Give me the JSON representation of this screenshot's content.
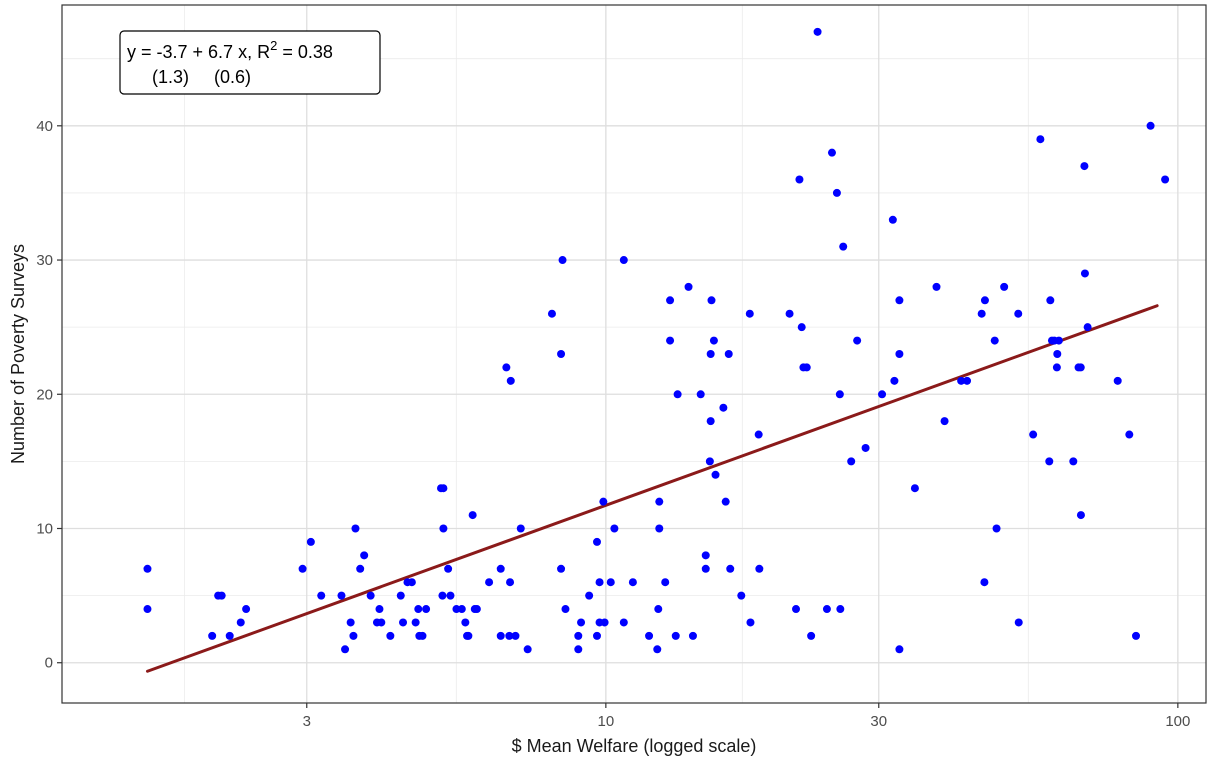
{
  "chart_data": {
    "type": "scatter",
    "xlabel": "$ Mean Welfare (logged scale)",
    "ylabel": "Number of Poverty Surveys",
    "x_scale": "log",
    "xlim": [
      1.12,
      112
    ],
    "ylim": [
      -3,
      49
    ],
    "x_ticks": [
      3,
      10,
      30,
      100
    ],
    "x_tick_labels": [
      "3",
      "10",
      "30",
      "100"
    ],
    "y_ticks": [
      0,
      10,
      20,
      30,
      40
    ],
    "y_tick_labels": [
      "0",
      "10",
      "20",
      "30",
      "40"
    ],
    "grid": true,
    "point_color": "#0000ff",
    "fit_line_color": "#8b1a1a",
    "annotation": {
      "line1": "y = -3.7 + 6.7 x, R",
      "line1_sup": "2",
      "line1_tail": " = 0.38",
      "line2": "(1.3)     (0.6)"
    },
    "fit_line": {
      "intercept": -3.7,
      "slope": 6.7,
      "x_start": 1.58,
      "x_end": 92
    },
    "points": [
      [
        1.58,
        7
      ],
      [
        1.58,
        4
      ],
      [
        2.05,
        2
      ],
      [
        2.1,
        5
      ],
      [
        2.13,
        5
      ],
      [
        2.2,
        2
      ],
      [
        2.3,
        3
      ],
      [
        2.35,
        4
      ],
      [
        2.95,
        7
      ],
      [
        3.05,
        9
      ],
      [
        3.18,
        5
      ],
      [
        3.45,
        5
      ],
      [
        3.5,
        1
      ],
      [
        3.58,
        3
      ],
      [
        3.62,
        2
      ],
      [
        3.65,
        10
      ],
      [
        3.72,
        7
      ],
      [
        3.78,
        8
      ],
      [
        3.88,
        5
      ],
      [
        3.98,
        3
      ],
      [
        4.02,
        4
      ],
      [
        4.05,
        3
      ],
      [
        4.2,
        2
      ],
      [
        4.38,
        5
      ],
      [
        4.42,
        3
      ],
      [
        4.5,
        6
      ],
      [
        4.58,
        6
      ],
      [
        4.65,
        3
      ],
      [
        4.7,
        4
      ],
      [
        4.72,
        2
      ],
      [
        4.78,
        2
      ],
      [
        4.85,
        4
      ],
      [
        5.15,
        13
      ],
      [
        5.2,
        13
      ],
      [
        5.18,
        5
      ],
      [
        5.2,
        10
      ],
      [
        5.35,
        5
      ],
      [
        5.3,
        7
      ],
      [
        5.48,
        4
      ],
      [
        5.6,
        4
      ],
      [
        5.68,
        3
      ],
      [
        5.72,
        2
      ],
      [
        5.75,
        2
      ],
      [
        5.85,
        11
      ],
      [
        5.9,
        4
      ],
      [
        5.95,
        4
      ],
      [
        6.25,
        6
      ],
      [
        6.55,
        7
      ],
      [
        6.55,
        2
      ],
      [
        6.7,
        22
      ],
      [
        6.78,
        2
      ],
      [
        6.82,
        21
      ],
      [
        6.8,
        6
      ],
      [
        6.95,
        2
      ],
      [
        7.1,
        10
      ],
      [
        7.3,
        1
      ],
      [
        8.05,
        26
      ],
      [
        8.4,
        30
      ],
      [
        8.35,
        23
      ],
      [
        8.35,
        7
      ],
      [
        8.5,
        4
      ],
      [
        8.95,
        1
      ],
      [
        8.95,
        2
      ],
      [
        9.05,
        3
      ],
      [
        9.35,
        5
      ],
      [
        9.65,
        9
      ],
      [
        9.65,
        2
      ],
      [
        9.75,
        3
      ],
      [
        9.75,
        6
      ],
      [
        9.95,
        3
      ],
      [
        9.9,
        12
      ],
      [
        10.2,
        6
      ],
      [
        10.35,
        10
      ],
      [
        10.75,
        3
      ],
      [
        10.75,
        30
      ],
      [
        11.15,
        6
      ],
      [
        11.9,
        2
      ],
      [
        12.3,
        1
      ],
      [
        12.35,
        4
      ],
      [
        12.4,
        10
      ],
      [
        12.4,
        12
      ],
      [
        12.7,
        6
      ],
      [
        12.95,
        24
      ],
      [
        12.95,
        27
      ],
      [
        13.25,
        2
      ],
      [
        13.35,
        20
      ],
      [
        13.95,
        28
      ],
      [
        14.2,
        2
      ],
      [
        14.65,
        20
      ],
      [
        14.95,
        7
      ],
      [
        14.95,
        8
      ],
      [
        15.2,
        15
      ],
      [
        15.25,
        18
      ],
      [
        15.25,
        23
      ],
      [
        15.3,
        27
      ],
      [
        15.45,
        24
      ],
      [
        15.55,
        14
      ],
      [
        16.05,
        19
      ],
      [
        16.2,
        12
      ],
      [
        16.4,
        23
      ],
      [
        16.5,
        7
      ],
      [
        17.25,
        5
      ],
      [
        17.85,
        26
      ],
      [
        17.9,
        3
      ],
      [
        18.5,
        17
      ],
      [
        18.55,
        7
      ],
      [
        20.95,
        26
      ],
      [
        21.5,
        4
      ],
      [
        21.8,
        36
      ],
      [
        22.0,
        25
      ],
      [
        22.15,
        22
      ],
      [
        22.45,
        22
      ],
      [
        22.85,
        2
      ],
      [
        23.45,
        47
      ],
      [
        24.35,
        4
      ],
      [
        24.85,
        38
      ],
      [
        25.35,
        35
      ],
      [
        25.7,
        4
      ],
      [
        25.65,
        20
      ],
      [
        26.0,
        31
      ],
      [
        26.85,
        15
      ],
      [
        27.5,
        24
      ],
      [
        28.45,
        16
      ],
      [
        30.4,
        20
      ],
      [
        31.75,
        33
      ],
      [
        31.95,
        21
      ],
      [
        32.6,
        27
      ],
      [
        32.6,
        23
      ],
      [
        32.6,
        1
      ],
      [
        34.7,
        13
      ],
      [
        37.85,
        28
      ],
      [
        39.1,
        18
      ],
      [
        41.8,
        21
      ],
      [
        42.8,
        21
      ],
      [
        45.4,
        26
      ],
      [
        45.9,
        6
      ],
      [
        46.0,
        27
      ],
      [
        47.85,
        24
      ],
      [
        48.2,
        10
      ],
      [
        49.7,
        28
      ],
      [
        52.6,
        26
      ],
      [
        52.7,
        3
      ],
      [
        55.85,
        17
      ],
      [
        57.5,
        39
      ],
      [
        59.85,
        27
      ],
      [
        59.6,
        15
      ],
      [
        60.25,
        24
      ],
      [
        60.85,
        24
      ],
      [
        61.45,
        22
      ],
      [
        61.55,
        23
      ],
      [
        61.95,
        24
      ],
      [
        65.65,
        15
      ],
      [
        67.05,
        22
      ],
      [
        67.65,
        22
      ],
      [
        67.7,
        11
      ],
      [
        68.65,
        37
      ],
      [
        68.8,
        29
      ],
      [
        69.55,
        25
      ],
      [
        78.5,
        21
      ],
      [
        82.25,
        17
      ],
      [
        84.5,
        2
      ],
      [
        89.6,
        40
      ],
      [
        95.0,
        36
      ]
    ]
  }
}
